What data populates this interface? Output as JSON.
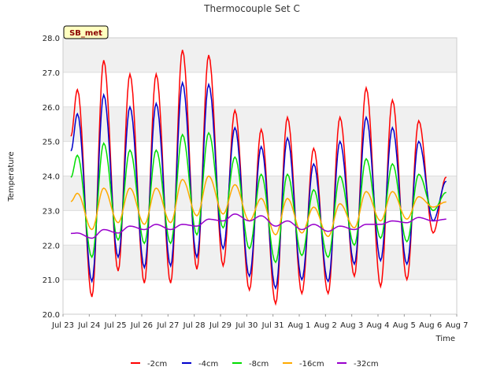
{
  "chart_data": {
    "type": "line",
    "title": "Thermocouple Set C",
    "xlabel": "Time",
    "ylabel": "Temperature",
    "badge": "SB_met",
    "ylim": [
      20.0,
      28.0
    ],
    "yticks": [
      "20.0",
      "21.0",
      "22.0",
      "23.0",
      "24.0",
      "25.0",
      "26.0",
      "27.0",
      "28.0"
    ],
    "xlim_days": [
      0,
      15
    ],
    "xticks": [
      "Jul 23",
      "Jul 24",
      "Jul 25",
      "Jul 26",
      "Jul 27",
      "Jul 28",
      "Jul 29",
      "Jul 30",
      "Jul 31",
      "Aug 1",
      "Aug 2",
      "Aug 3",
      "Aug 4",
      "Aug 5",
      "Aug 6",
      "Aug 7"
    ],
    "grid": true,
    "legend_position": "bottom",
    "series": [
      {
        "name": "-2cm",
        "color": "#ff0000",
        "peaks": [
          26.5,
          27.35,
          26.95,
          26.95,
          27.65,
          27.5,
          25.9,
          25.35,
          25.7,
          24.8,
          25.7,
          26.55,
          26.2,
          25.6
        ],
        "troughs": [
          21.1,
          20.5,
          21.25,
          20.9,
          20.9,
          21.3,
          21.4,
          20.7,
          20.3,
          20.6,
          20.6,
          21.1,
          20.8,
          21.0,
          22.35
        ]
      },
      {
        "name": "-4cm",
        "color": "#0000cc",
        "peaks": [
          25.8,
          26.35,
          26.0,
          26.1,
          26.7,
          26.65,
          25.4,
          24.85,
          25.1,
          24.35,
          25.0,
          25.7,
          25.4,
          25.0
        ],
        "troughs": [
          21.5,
          20.95,
          21.65,
          21.35,
          21.4,
          21.65,
          21.9,
          21.1,
          20.75,
          21.0,
          20.95,
          21.45,
          21.55,
          21.45,
          22.7
        ]
      },
      {
        "name": "-8cm",
        "color": "#00dd00",
        "peaks": [
          24.6,
          24.95,
          24.75,
          24.75,
          25.2,
          25.25,
          24.55,
          24.05,
          24.05,
          23.6,
          24.0,
          24.5,
          24.35,
          24.05
        ],
        "troughs": [
          22.05,
          21.65,
          22.15,
          22.05,
          22.05,
          22.3,
          22.5,
          21.9,
          21.5,
          21.7,
          21.65,
          22.0,
          22.2,
          22.1,
          23.0
        ]
      },
      {
        "name": "-16cm",
        "color": "#ffaa00",
        "peaks": [
          23.5,
          23.65,
          23.65,
          23.65,
          23.9,
          24.0,
          23.75,
          23.35,
          23.35,
          23.1,
          23.2,
          23.55,
          23.55,
          23.4
        ],
        "troughs": [
          22.55,
          22.45,
          22.65,
          22.6,
          22.65,
          22.85,
          22.9,
          22.7,
          22.3,
          22.35,
          22.25,
          22.5,
          22.7,
          22.75,
          23.1
        ]
      },
      {
        "name": "-32cm",
        "color": "#9900cc",
        "peaks": [
          22.35,
          22.45,
          22.55,
          22.6,
          22.6,
          22.75,
          22.9,
          22.85,
          22.7,
          22.6,
          22.55,
          22.6,
          22.7,
          22.8
        ],
        "troughs": [
          22.3,
          22.2,
          22.35,
          22.45,
          22.45,
          22.55,
          22.7,
          22.7,
          22.55,
          22.45,
          22.4,
          22.45,
          22.6,
          22.65,
          22.7
        ]
      }
    ]
  }
}
